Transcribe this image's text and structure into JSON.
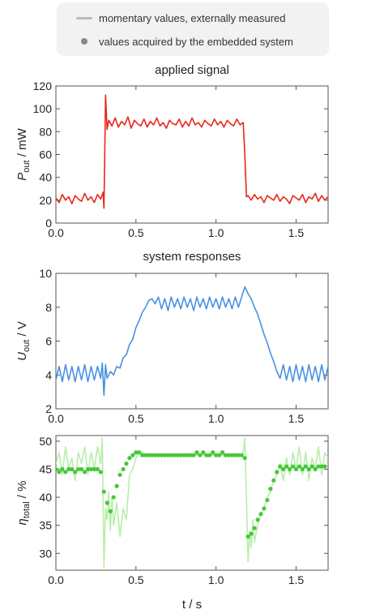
{
  "legend": {
    "line_label": "momentary values, externally measured",
    "dot_label": "values acquired by the embedded system",
    "line_color": "#b9b9b9",
    "dot_color": "#888888"
  },
  "chart_data": [
    {
      "type": "line",
      "title": "applied signal",
      "ylabel_main": "P",
      "ylabel_sub": "out",
      "ylabel_unit": " / mW",
      "xlabel": "",
      "xlim": [
        0,
        1.7
      ],
      "ylim": [
        0,
        120
      ],
      "xticks": [
        "0.0",
        "0.5",
        "1.0",
        "1.5"
      ],
      "xtick_values": [
        0,
        0.5,
        1.0,
        1.5
      ],
      "yticks": [
        "0",
        "20",
        "40",
        "60",
        "80",
        "100",
        "120"
      ],
      "ytick_values": [
        0,
        20,
        40,
        60,
        80,
        100,
        120
      ],
      "grid": false,
      "series": [
        {
          "color": "#e8271c",
          "x": [
            0,
            0.02,
            0.04,
            0.06,
            0.08,
            0.1,
            0.12,
            0.14,
            0.16,
            0.18,
            0.2,
            0.22,
            0.24,
            0.26,
            0.28,
            0.295,
            0.3,
            0.305,
            0.31,
            0.32,
            0.33,
            0.35,
            0.37,
            0.39,
            0.41,
            0.43,
            0.45,
            0.47,
            0.49,
            0.51,
            0.53,
            0.55,
            0.57,
            0.59,
            0.61,
            0.63,
            0.65,
            0.67,
            0.69,
            0.71,
            0.73,
            0.75,
            0.77,
            0.79,
            0.81,
            0.83,
            0.85,
            0.87,
            0.89,
            0.91,
            0.93,
            0.95,
            0.97,
            0.99,
            1.01,
            1.03,
            1.05,
            1.07,
            1.09,
            1.11,
            1.13,
            1.15,
            1.17,
            1.18,
            1.19,
            1.2,
            1.22,
            1.24,
            1.26,
            1.28,
            1.3,
            1.32,
            1.34,
            1.36,
            1.38,
            1.4,
            1.42,
            1.44,
            1.46,
            1.48,
            1.5,
            1.52,
            1.54,
            1.56,
            1.58,
            1.6,
            1.62,
            1.64,
            1.66,
            1.68,
            1.7
          ],
          "y": [
            22,
            18,
            25,
            20,
            23,
            17,
            24,
            21,
            19,
            26,
            20,
            23,
            18,
            25,
            21,
            27,
            13,
            60,
            112,
            82,
            90,
            85,
            92,
            84,
            89,
            86,
            93,
            83,
            90,
            87,
            85,
            91,
            84,
            89,
            86,
            92,
            85,
            88,
            83,
            90,
            87,
            86,
            91,
            84,
            89,
            85,
            92,
            86,
            88,
            84,
            90,
            87,
            85,
            91,
            86,
            89,
            84,
            90,
            87,
            85,
            91,
            86,
            88,
            60,
            23,
            24,
            20,
            25,
            21,
            23,
            18,
            24,
            22,
            20,
            25,
            19,
            23,
            21,
            17,
            24,
            22,
            20,
            25,
            18,
            23,
            21,
            26,
            19,
            24,
            20,
            23
          ]
        }
      ]
    },
    {
      "type": "line",
      "title": "system responses",
      "ylabel_main": "U",
      "ylabel_sub": "out",
      "ylabel_unit": " / V",
      "xlabel": "",
      "xlim": [
        0,
        1.7
      ],
      "ylim": [
        2,
        10
      ],
      "xticks": [
        "0.0",
        "0.5",
        "1.0",
        "1.5"
      ],
      "xtick_values": [
        0,
        0.5,
        1.0,
        1.5
      ],
      "yticks": [
        "2",
        "4",
        "6",
        "8",
        "10"
      ],
      "ytick_values": [
        2,
        4,
        6,
        8,
        10
      ],
      "grid": false,
      "series": [
        {
          "color": "#4a90e2",
          "x": [
            0,
            0.02,
            0.04,
            0.06,
            0.08,
            0.1,
            0.12,
            0.14,
            0.16,
            0.18,
            0.2,
            0.22,
            0.24,
            0.26,
            0.28,
            0.29,
            0.3,
            0.31,
            0.32,
            0.34,
            0.36,
            0.38,
            0.4,
            0.42,
            0.44,
            0.46,
            0.48,
            0.5,
            0.52,
            0.54,
            0.56,
            0.58,
            0.6,
            0.62,
            0.64,
            0.66,
            0.68,
            0.7,
            0.72,
            0.74,
            0.76,
            0.78,
            0.8,
            0.82,
            0.84,
            0.86,
            0.88,
            0.9,
            0.92,
            0.94,
            0.96,
            0.98,
            1.0,
            1.02,
            1.04,
            1.06,
            1.08,
            1.1,
            1.12,
            1.14,
            1.16,
            1.18,
            1.2,
            1.22,
            1.24,
            1.26,
            1.28,
            1.3,
            1.32,
            1.34,
            1.36,
            1.38,
            1.4,
            1.42,
            1.44,
            1.46,
            1.48,
            1.5,
            1.52,
            1.54,
            1.56,
            1.58,
            1.6,
            1.62,
            1.64,
            1.66,
            1.68,
            1.7
          ],
          "y": [
            3.7,
            4.5,
            3.6,
            4.6,
            3.7,
            4.5,
            3.6,
            4.5,
            3.7,
            4.6,
            3.6,
            4.5,
            3.7,
            4.5,
            3.8,
            4.7,
            2.8,
            4.6,
            3.8,
            4.2,
            4.0,
            4.5,
            4.4,
            5.0,
            5.2,
            5.8,
            6.1,
            6.8,
            7.2,
            7.7,
            8.0,
            8.4,
            8.5,
            8.2,
            8.6,
            7.9,
            8.5,
            7.8,
            8.6,
            8.0,
            8.5,
            7.9,
            8.6,
            8.0,
            8.5,
            7.8,
            8.6,
            8.0,
            8.5,
            7.9,
            8.6,
            8.0,
            8.5,
            7.9,
            8.6,
            8.0,
            8.5,
            7.9,
            8.6,
            8.0,
            8.6,
            9.2,
            8.8,
            8.5,
            8.0,
            7.6,
            7.0,
            6.4,
            5.9,
            5.3,
            4.8,
            4.2,
            3.8,
            4.6,
            3.7,
            4.5,
            3.6,
            4.6,
            3.7,
            4.5,
            3.6,
            4.6,
            3.7,
            4.5,
            3.6,
            4.6,
            3.7,
            4.5
          ]
        }
      ]
    },
    {
      "type": "line",
      "title": "",
      "ylabel_main": "η",
      "ylabel_sub": "total",
      "ylabel_unit": " / %",
      "xlabel": "t / s",
      "xlim": [
        0,
        1.7
      ],
      "ylim": [
        27,
        51
      ],
      "xticks": [
        "0.0",
        "0.5",
        "1.0",
        "1.5"
      ],
      "xtick_values": [
        0,
        0.5,
        1.0,
        1.5
      ],
      "yticks": [
        "30",
        "35",
        "40",
        "45",
        "50"
      ],
      "ytick_values": [
        30,
        35,
        40,
        45,
        50
      ],
      "grid": false,
      "series": [
        {
          "color": "#b8eeaa",
          "x": [
            0,
            0.02,
            0.04,
            0.06,
            0.08,
            0.1,
            0.12,
            0.14,
            0.16,
            0.18,
            0.2,
            0.22,
            0.24,
            0.26,
            0.28,
            0.29,
            0.3,
            0.31,
            0.32,
            0.33,
            0.34,
            0.35,
            0.36,
            0.38,
            0.4,
            0.42,
            0.44,
            0.46,
            0.48,
            0.5,
            0.52,
            0.54,
            0.56,
            0.6,
            0.65,
            0.7,
            0.75,
            0.8,
            0.85,
            0.9,
            0.95,
            1.0,
            1.05,
            1.1,
            1.15,
            1.17,
            1.18,
            1.19,
            1.2,
            1.21,
            1.22,
            1.23,
            1.24,
            1.26,
            1.28,
            1.3,
            1.32,
            1.34,
            1.36,
            1.38,
            1.4,
            1.42,
            1.44,
            1.46,
            1.48,
            1.5,
            1.52,
            1.54,
            1.56,
            1.58,
            1.6,
            1.62,
            1.64,
            1.66,
            1.68,
            1.7
          ],
          "y": [
            46,
            48,
            44,
            49,
            45,
            47,
            43,
            48,
            46,
            49,
            44,
            48,
            45,
            49,
            46,
            50.5,
            27.5,
            38,
            36,
            41,
            34,
            40,
            35,
            39,
            33,
            38,
            36,
            44,
            45,
            47,
            48,
            48,
            47.5,
            47.5,
            47.5,
            47.5,
            47.5,
            47.5,
            47.5,
            47.5,
            47.5,
            47.5,
            47.5,
            47.5,
            47.5,
            48,
            50.5,
            40,
            28.5,
            34,
            31,
            36,
            32,
            35,
            37,
            38,
            40,
            41,
            43,
            44,
            46,
            43,
            47,
            44,
            48,
            45,
            49,
            44,
            48,
            43,
            47,
            45,
            49,
            44,
            48,
            47
          ]
        },
        {
          "color": "#44c837",
          "markers": true,
          "x": [
            0.0,
            0.02,
            0.04,
            0.06,
            0.08,
            0.1,
            0.12,
            0.14,
            0.16,
            0.18,
            0.2,
            0.22,
            0.24,
            0.26,
            0.28,
            0.3,
            0.32,
            0.34,
            0.36,
            0.38,
            0.4,
            0.42,
            0.44,
            0.46,
            0.48,
            0.5,
            0.52,
            0.54,
            0.56,
            0.58,
            0.6,
            0.62,
            0.64,
            0.66,
            0.68,
            0.7,
            0.72,
            0.74,
            0.76,
            0.78,
            0.8,
            0.82,
            0.84,
            0.86,
            0.88,
            0.9,
            0.92,
            0.94,
            0.96,
            0.98,
            1.0,
            1.02,
            1.04,
            1.06,
            1.08,
            1.1,
            1.12,
            1.14,
            1.16,
            1.18,
            1.2,
            1.22,
            1.24,
            1.26,
            1.28,
            1.3,
            1.32,
            1.34,
            1.36,
            1.38,
            1.4,
            1.42,
            1.44,
            1.46,
            1.48,
            1.5,
            1.52,
            1.54,
            1.56,
            1.58,
            1.6,
            1.62,
            1.64,
            1.66,
            1.68
          ],
          "y": [
            45,
            44.5,
            45,
            44.5,
            45,
            45,
            44.5,
            45,
            45,
            44.5,
            45,
            45,
            45,
            45,
            44.5,
            41,
            39,
            37.5,
            40,
            42,
            44,
            45,
            46,
            47,
            47.5,
            48,
            48,
            47.5,
            47.5,
            47.5,
            47.5,
            47.5,
            47.5,
            47.5,
            47.5,
            47.5,
            47.5,
            47.5,
            47.5,
            47.5,
            47.5,
            47.5,
            47.5,
            47.5,
            48,
            47.5,
            48,
            47.5,
            47.5,
            48,
            47.5,
            47.5,
            48,
            47.5,
            47.5,
            47.5,
            47.5,
            47.5,
            47.5,
            47,
            33,
            33.5,
            34.5,
            36,
            37,
            38,
            39.5,
            41.5,
            43,
            44.5,
            45.5,
            45,
            45.5,
            45,
            45.5,
            45,
            45.5,
            45,
            45.5,
            45,
            45.5,
            45,
            45.5,
            45.5,
            45.5
          ]
        }
      ]
    }
  ]
}
